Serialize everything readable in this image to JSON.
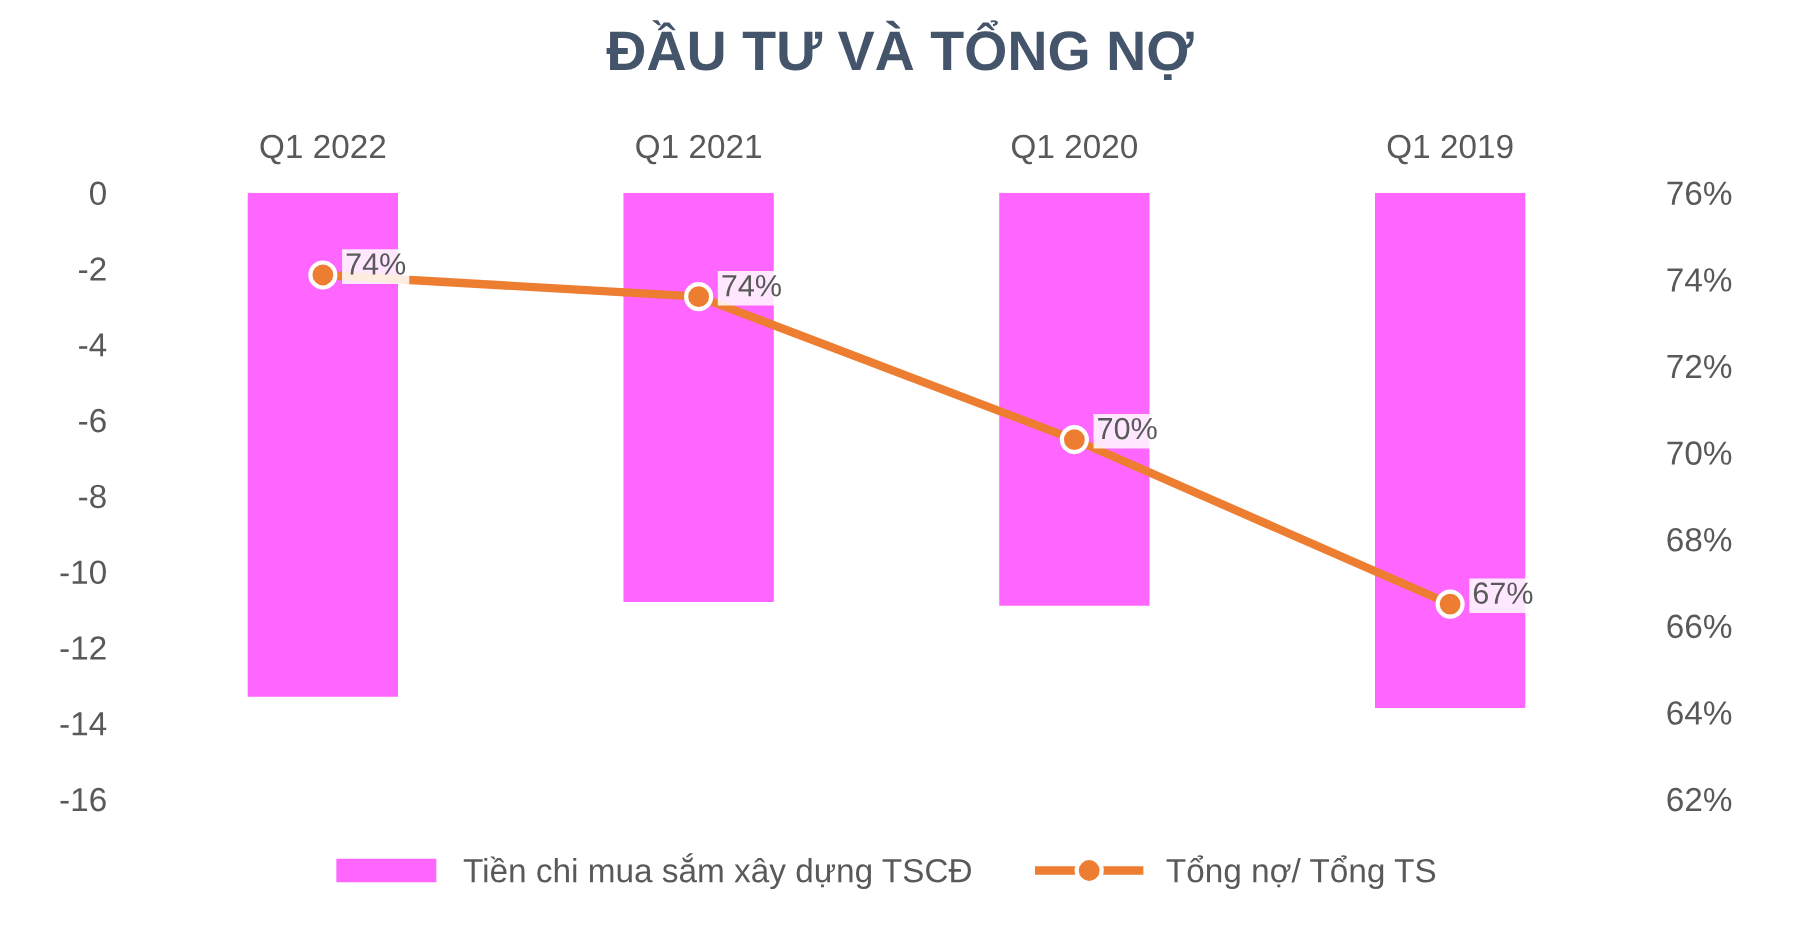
{
  "chart_data": {
    "type": "bar",
    "title": "ĐẦU TƯ VÀ TỔNG NỢ",
    "categories": [
      "Q1 2022",
      "Q1 2021",
      "Q1 2020",
      "Q1 2019"
    ],
    "series": [
      {
        "name": "Tiền chi mua sắm xây dựng TSCĐ",
        "color": "#ff66ff",
        "values": [
          -13.3,
          -10.8,
          -10.9,
          -13.6
        ]
      },
      {
        "name": "Tổng nợ/ Tổng TS",
        "type": "line",
        "axis": "y2",
        "color": "#ed7d31",
        "marker": "circle",
        "values": [
          74.1,
          73.6,
          70.3,
          66.5
        ],
        "value_labels": [
          "74%",
          "74%",
          "70%",
          "67%"
        ]
      }
    ],
    "ylim": [
      -16,
      0
    ],
    "yticks": [
      0,
      -2,
      -4,
      -6,
      -8,
      -10,
      -12,
      -14,
      -16
    ],
    "y2lim": [
      62,
      76
    ],
    "y2ticks": [
      {
        "value": 62,
        "label": "62%"
      },
      {
        "value": 64,
        "label": "64%"
      },
      {
        "value": 66,
        "label": "66%"
      },
      {
        "value": 68,
        "label": "68%"
      },
      {
        "value": 70,
        "label": "70%"
      },
      {
        "value": 72,
        "label": "72%"
      },
      {
        "value": 74,
        "label": "74%"
      },
      {
        "value": 76,
        "label": "76%"
      }
    ],
    "grid": false,
    "legend": "bottom"
  }
}
